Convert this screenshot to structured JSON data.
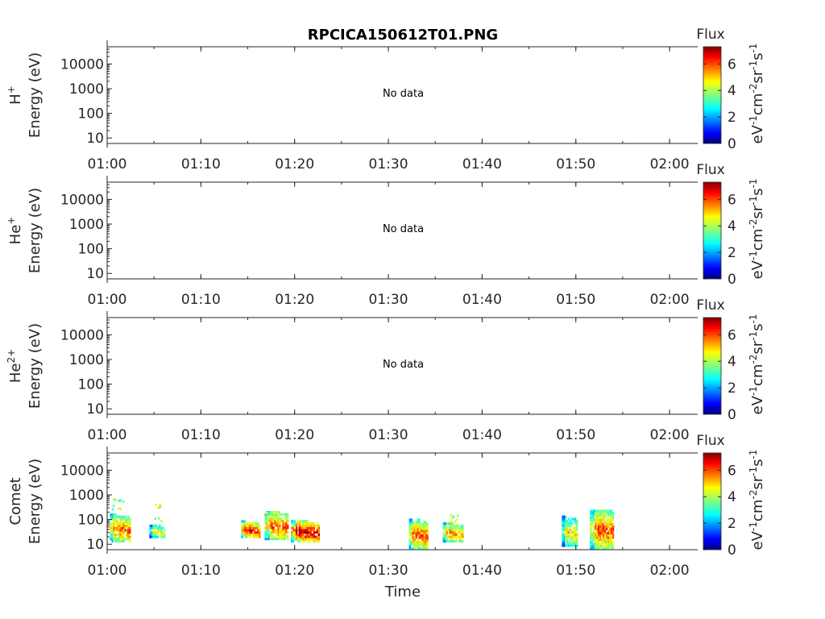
{
  "title": "RPCICA150612T01.PNG",
  "x_axis_label": "Time",
  "colorbar": {
    "title": "Flux",
    "ticks": [
      "0",
      "2",
      "4",
      "6"
    ],
    "range": [
      0,
      7.3
    ]
  },
  "chart_data": [
    {
      "type": "heatmap",
      "panel": "H+",
      "ylabel_species": "H",
      "ylabel_species_sup": "+",
      "ylabel": "Energy (eV)",
      "yscale": "log",
      "ylim": [
        6,
        50000
      ],
      "y_ticks": [
        "10",
        "100",
        "1000",
        "10000"
      ],
      "x_ticks": [
        "01:00",
        "01:10",
        "01:20",
        "01:30",
        "01:40",
        "01:50",
        "02:00"
      ],
      "xlim": [
        "01:00",
        "02:03"
      ],
      "annotation": "No data",
      "cells": []
    },
    {
      "type": "heatmap",
      "panel": "He+",
      "ylabel_species": "He",
      "ylabel_species_sup": "+",
      "ylabel": "Energy (eV)",
      "yscale": "log",
      "ylim": [
        6,
        50000
      ],
      "y_ticks": [
        "10",
        "100",
        "1000",
        "10000"
      ],
      "x_ticks": [
        "01:00",
        "01:10",
        "01:20",
        "01:30",
        "01:40",
        "01:50",
        "02:00"
      ],
      "xlim": [
        "01:00",
        "02:03"
      ],
      "annotation": "No data",
      "cells": []
    },
    {
      "type": "heatmap",
      "panel": "He2+",
      "ylabel_species": "He",
      "ylabel_species_sup": "2+",
      "ylabel": "Energy (eV)",
      "yscale": "log",
      "ylim": [
        6,
        50000
      ],
      "y_ticks": [
        "10",
        "100",
        "1000",
        "10000"
      ],
      "x_ticks": [
        "01:00",
        "01:10",
        "01:20",
        "01:30",
        "01:40",
        "01:50",
        "02:00"
      ],
      "xlim": [
        "01:00",
        "02:03"
      ],
      "annotation": "No data",
      "cells": []
    },
    {
      "type": "heatmap",
      "panel": "Comet",
      "ylabel_species": "Comet",
      "ylabel_species_sup": "",
      "ylabel": "Energy (eV)",
      "yscale": "log",
      "ylim": [
        6,
        50000
      ],
      "y_ticks": [
        "10",
        "100",
        "1000",
        "10000"
      ],
      "x_ticks": [
        "01:00",
        "01:10",
        "01:20",
        "01:30",
        "01:40",
        "01:50",
        "02:00"
      ],
      "xlim": [
        "01:00",
        "02:03"
      ],
      "annotation": "",
      "bursts": [
        {
          "start": "01:00.3",
          "end": "01:02.4",
          "e_low": 12,
          "e_high": 150,
          "peak": 5.8,
          "sparse_high": 800
        },
        {
          "start": "01:04.5",
          "end": "01:06.2",
          "e_low": 18,
          "e_high": 60,
          "peak": 4.6,
          "sparse_high": 600
        },
        {
          "start": "01:14.3",
          "end": "01:16.3",
          "e_low": 18,
          "e_high": 80,
          "peak": 6.6,
          "sparse_high": 0
        },
        {
          "start": "01:16.8",
          "end": "01:19.2",
          "e_low": 15,
          "e_high": 200,
          "peak": 6.0,
          "sparse_high": 230
        },
        {
          "start": "01:19.6",
          "end": "01:22.5",
          "e_low": 12,
          "e_high": 90,
          "peak": 6.8,
          "sparse_high": 0
        },
        {
          "start": "01:32.2",
          "end": "01:34.2",
          "e_low": 6,
          "e_high": 100,
          "peak": 5.9,
          "sparse_high": 0
        },
        {
          "start": "01:35.8",
          "end": "01:38.0",
          "e_low": 12,
          "e_high": 70,
          "peak": 5.5,
          "sparse_high": 180
        },
        {
          "start": "01:48.5",
          "end": "01:50.2",
          "e_low": 8,
          "e_high": 120,
          "peak": 4.8,
          "sparse_high": 0
        },
        {
          "start": "01:51.5",
          "end": "01:54.0",
          "e_low": 6,
          "e_high": 250,
          "peak": 6.0,
          "sparse_high": 0
        }
      ]
    }
  ]
}
